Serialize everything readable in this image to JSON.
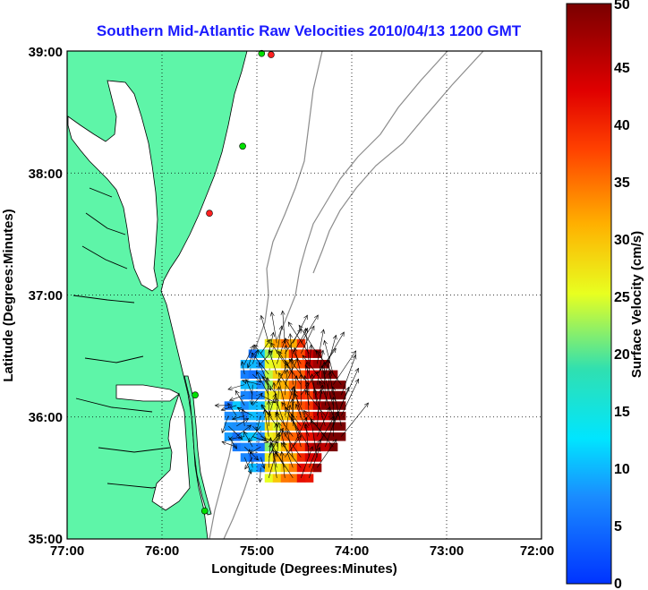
{
  "title": "Southern Mid-Atlantic Raw Velocities 2010/04/13 1200 GMT",
  "x_axis": {
    "label": "Longitude (Degrees:Minutes)",
    "ticks": [
      "77:00",
      "76:00",
      "75:00",
      "74:00",
      "73:00",
      "72:00"
    ]
  },
  "y_axis": {
    "label": "Latitude (Degrees:Minutes)",
    "ticks": [
      "39:00",
      "38:00",
      "37:00",
      "36:00",
      "35:00"
    ]
  },
  "colorbar": {
    "label": "Surface Velocity (cm/s)",
    "ticks": [
      "50",
      "45",
      "40",
      "35",
      "30",
      "25",
      "20",
      "15",
      "10",
      "5",
      "0"
    ],
    "min": 0,
    "max": 50
  },
  "map": {
    "lon_range": [
      -77,
      -72
    ],
    "lat_range": [
      35,
      39
    ],
    "grid": true,
    "land_color": "#5ef5a8",
    "contour_color": "#8c8c8c"
  },
  "stations": [
    {
      "lon": -74.85,
      "lat": 38.97,
      "color": "#ff2020"
    },
    {
      "lon": -74.95,
      "lat": 38.98,
      "color": "#00e000"
    },
    {
      "lon": -75.15,
      "lat": 38.22,
      "color": "#00e000"
    },
    {
      "lon": -75.5,
      "lat": 37.67,
      "color": "#ff2020"
    },
    {
      "lon": -75.65,
      "lat": 36.18,
      "color": "#00e000"
    },
    {
      "lon": -75.55,
      "lat": 35.23,
      "color": "#00e000"
    }
  ]
}
